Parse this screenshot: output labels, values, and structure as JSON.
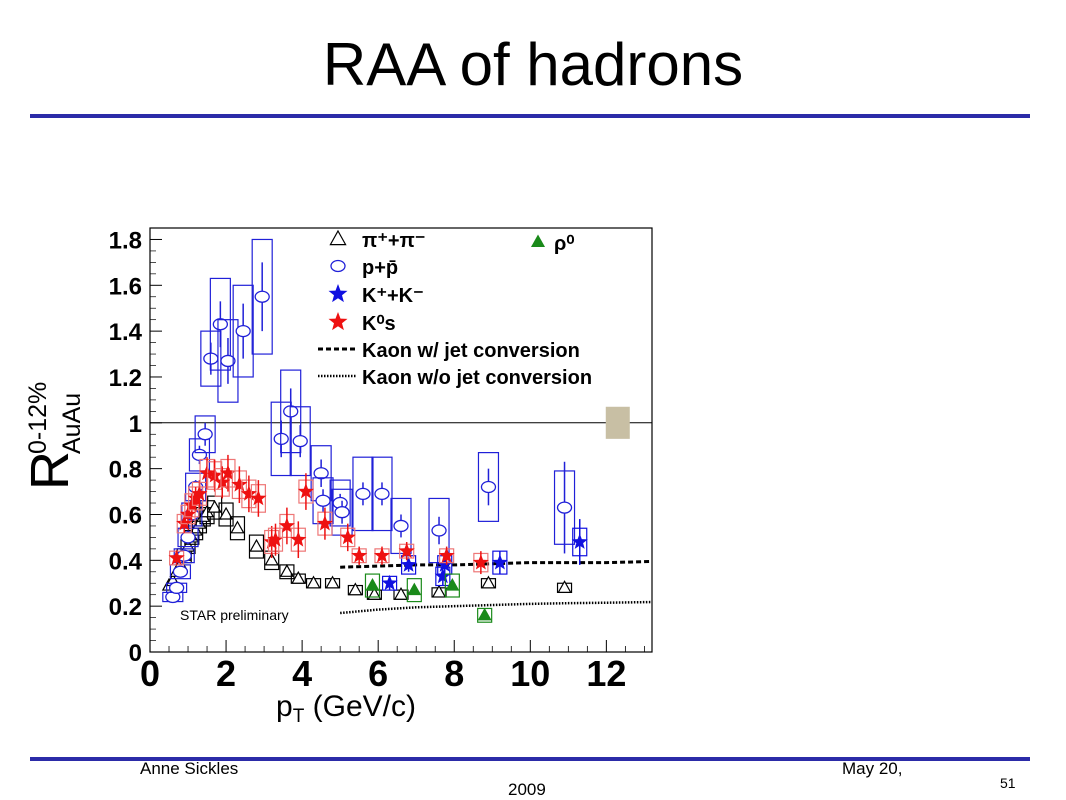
{
  "slide": {
    "title": "RAA of hadrons",
    "footer_author": "Anne Sickles",
    "footer_date_line1": "May 20,",
    "footer_date_line2": "2009",
    "page_number": "51"
  },
  "colors": {
    "rule": "#2b2ba8",
    "pion": "#000000",
    "proton": "#2020d8",
    "kaon_charged": "#1010e0",
    "k0s": "#ee1111",
    "rho": "#1a8a1a",
    "norm_box": "#c8bfa4"
  },
  "chart_data": {
    "type": "scatter",
    "xlim": [
      0,
      13.2
    ],
    "ylim": [
      0,
      1.85
    ],
    "x_ticks": [
      0,
      2,
      4,
      6,
      8,
      10,
      12
    ],
    "y_ticks": [
      0,
      0.2,
      0.4,
      0.6,
      0.8,
      1,
      1.2,
      1.4,
      1.6,
      1.8
    ],
    "x_tick_labels": [
      "0",
      "2",
      "4",
      "6",
      "8",
      "10",
      "12"
    ],
    "y_tick_labels": [
      "0",
      "0.2",
      "0.4",
      "0.6",
      "0.8",
      "1",
      "1.2",
      "1.4",
      "1.6",
      "1.8"
    ],
    "xlabel_main": "p",
    "xlabel_sub": "T",
    "xlabel_rest": " (GeV/c)",
    "ylabel_main": "R",
    "ylabel_sup": "0-12%",
    "ylabel_sub": "AuAu",
    "annotation": "STAR preliminary",
    "reference_line_y": 1,
    "norm_uncertainty": {
      "x": 12.3,
      "y_low": 0.93,
      "y_high": 1.07
    },
    "legend": [
      {
        "label": "π⁺+π⁻",
        "marker": "triangle-open"
      },
      {
        "label": "p+p̄",
        "marker": "circle-open"
      },
      {
        "label": "K⁺+K⁻",
        "marker": "star"
      },
      {
        "label": "K⁰s",
        "marker": "star"
      },
      {
        "label": "Kaon w/ jet conversion",
        "marker": "dashed"
      },
      {
        "label": "Kaon w/o jet conversion",
        "marker": "dotted"
      },
      {
        "label": "ρ⁰",
        "marker": "triangle-filled"
      }
    ],
    "series": [
      {
        "name": "π⁺+π⁻",
        "marker": "triangle-open",
        "points": [
          {
            "x": 0.5,
            "y": 0.29,
            "e": 0.0,
            "s": 0.0
          },
          {
            "x": 0.6,
            "y": 0.31,
            "e": 0.0,
            "s": 0.0
          },
          {
            "x": 0.7,
            "y": 0.35,
            "e": 0.0,
            "s": 0.0
          },
          {
            "x": 0.8,
            "y": 0.38,
            "e": 0.0,
            "s": 0.0
          },
          {
            "x": 0.9,
            "y": 0.42,
            "e": 0.0,
            "s": 0.03
          },
          {
            "x": 1.0,
            "y": 0.46,
            "e": 0.0,
            "s": 0.03
          },
          {
            "x": 1.1,
            "y": 0.5,
            "e": 0.0,
            "s": 0.03
          },
          {
            "x": 1.2,
            "y": 0.53,
            "e": 0.0,
            "s": 0.04
          },
          {
            "x": 1.3,
            "y": 0.56,
            "e": 0.0,
            "s": 0.04
          },
          {
            "x": 1.4,
            "y": 0.59,
            "e": 0.0,
            "s": 0.04
          },
          {
            "x": 1.5,
            "y": 0.61,
            "e": 0.0,
            "s": 0.05
          },
          {
            "x": 1.7,
            "y": 0.63,
            "e": 0.0,
            "s": 0.05
          },
          {
            "x": 2.0,
            "y": 0.6,
            "e": 0.0,
            "s": 0.05
          },
          {
            "x": 2.3,
            "y": 0.54,
            "e": 0.0,
            "s": 0.05
          },
          {
            "x": 2.8,
            "y": 0.46,
            "e": 0.0,
            "s": 0.05
          },
          {
            "x": 3.2,
            "y": 0.4,
            "e": 0.0,
            "s": 0.04
          },
          {
            "x": 3.6,
            "y": 0.35,
            "e": 0.0,
            "s": 0.03
          },
          {
            "x": 3.9,
            "y": 0.32,
            "e": 0.0,
            "s": 0.02
          },
          {
            "x": 4.3,
            "y": 0.3,
            "e": 0.0,
            "s": 0.02
          },
          {
            "x": 4.8,
            "y": 0.3,
            "e": 0.0,
            "s": 0.02
          },
          {
            "x": 5.4,
            "y": 0.27,
            "e": 0.0,
            "s": 0.02
          },
          {
            "x": 5.9,
            "y": 0.25,
            "e": 0.0,
            "s": 0.02
          },
          {
            "x": 6.6,
            "y": 0.25,
            "e": 0.0,
            "s": 0.02
          },
          {
            "x": 7.6,
            "y": 0.26,
            "e": 0.0,
            "s": 0.02
          },
          {
            "x": 8.9,
            "y": 0.3,
            "e": 0.0,
            "s": 0.02
          },
          {
            "x": 10.9,
            "y": 0.28,
            "e": 0.0,
            "s": 0.02
          }
        ]
      },
      {
        "name": "p+p̄",
        "marker": "circle-open",
        "points": [
          {
            "x": 0.6,
            "y": 0.24,
            "e": 0.02,
            "s": 0.02
          },
          {
            "x": 0.7,
            "y": 0.28,
            "e": 0.02,
            "s": 0.02
          },
          {
            "x": 0.8,
            "y": 0.35,
            "e": 0.02,
            "s": 0.03
          },
          {
            "x": 0.9,
            "y": 0.42,
            "e": 0.02,
            "s": 0.03
          },
          {
            "x": 1.0,
            "y": 0.5,
            "e": 0.03,
            "s": 0.04
          },
          {
            "x": 1.1,
            "y": 0.6,
            "e": 0.03,
            "s": 0.05
          },
          {
            "x": 1.2,
            "y": 0.72,
            "e": 0.03,
            "s": 0.06
          },
          {
            "x": 1.3,
            "y": 0.86,
            "e": 0.04,
            "s": 0.07
          },
          {
            "x": 1.45,
            "y": 0.95,
            "e": 0.05,
            "s": 0.08
          },
          {
            "x": 1.6,
            "y": 1.28,
            "e": 0.07,
            "s": 0.12
          },
          {
            "x": 1.85,
            "y": 1.43,
            "e": 0.1,
            "s": 0.2
          },
          {
            "x": 2.05,
            "y": 1.27,
            "e": 0.1,
            "s": 0.18
          },
          {
            "x": 2.45,
            "y": 1.4,
            "e": 0.12,
            "s": 0.2
          },
          {
            "x": 2.95,
            "y": 1.55,
            "e": 0.15,
            "s": 0.25
          },
          {
            "x": 3.45,
            "y": 0.93,
            "e": 0.08,
            "s": 0.16
          },
          {
            "x": 3.7,
            "y": 1.05,
            "e": 0.1,
            "s": 0.18
          },
          {
            "x": 3.95,
            "y": 0.92,
            "e": 0.07,
            "s": 0.15
          },
          {
            "x": 4.5,
            "y": 0.78,
            "e": 0.06,
            "s": 0.12
          },
          {
            "x": 4.55,
            "y": 0.66,
            "e": 0.05,
            "s": 0.1
          },
          {
            "x": 5.0,
            "y": 0.65,
            "e": 0.04,
            "s": 0.1
          },
          {
            "x": 5.05,
            "y": 0.61,
            "e": 0.05,
            "s": 0.1
          },
          {
            "x": 5.6,
            "y": 0.69,
            "e": 0.05,
            "s": 0.16
          },
          {
            "x": 6.1,
            "y": 0.69,
            "e": 0.05,
            "s": 0.16
          },
          {
            "x": 6.6,
            "y": 0.55,
            "e": 0.05,
            "s": 0.12
          },
          {
            "x": 7.6,
            "y": 0.53,
            "e": 0.06,
            "s": 0.14
          },
          {
            "x": 8.9,
            "y": 0.72,
            "e": 0.08,
            "s": 0.15
          },
          {
            "x": 10.9,
            "y": 0.63,
            "e": 0.2,
            "s": 0.16
          }
        ]
      },
      {
        "name": "K⁺+K⁻",
        "marker": "star",
        "points": [
          {
            "x": 6.3,
            "y": 0.3,
            "e": 0.03,
            "s": 0.03
          },
          {
            "x": 6.8,
            "y": 0.38,
            "e": 0.03,
            "s": 0.04
          },
          {
            "x": 7.7,
            "y": 0.33,
            "e": 0.04,
            "s": 0.04
          },
          {
            "x": 7.75,
            "y": 0.38,
            "e": 0.04,
            "s": 0.04
          },
          {
            "x": 9.2,
            "y": 0.39,
            "e": 0.05,
            "s": 0.05
          },
          {
            "x": 11.3,
            "y": 0.48,
            "e": 0.1,
            "s": 0.06
          }
        ]
      },
      {
        "name": "K⁰s",
        "marker": "star",
        "points": [
          {
            "x": 0.7,
            "y": 0.41,
            "e": 0.03,
            "s": 0.03
          },
          {
            "x": 0.9,
            "y": 0.56,
            "e": 0.04,
            "s": 0.04
          },
          {
            "x": 1.0,
            "y": 0.6,
            "e": 0.04,
            "s": 0.04
          },
          {
            "x": 1.1,
            "y": 0.64,
            "e": 0.05,
            "s": 0.05
          },
          {
            "x": 1.2,
            "y": 0.67,
            "e": 0.05,
            "s": 0.05
          },
          {
            "x": 1.3,
            "y": 0.69,
            "e": 0.06,
            "s": 0.05
          },
          {
            "x": 1.5,
            "y": 0.78,
            "e": 0.07,
            "s": 0.06
          },
          {
            "x": 1.7,
            "y": 0.77,
            "e": 0.07,
            "s": 0.06
          },
          {
            "x": 1.9,
            "y": 0.74,
            "e": 0.07,
            "s": 0.06
          },
          {
            "x": 2.05,
            "y": 0.78,
            "e": 0.08,
            "s": 0.06
          },
          {
            "x": 2.35,
            "y": 0.73,
            "e": 0.08,
            "s": 0.06
          },
          {
            "x": 2.6,
            "y": 0.69,
            "e": 0.08,
            "s": 0.06
          },
          {
            "x": 2.85,
            "y": 0.67,
            "e": 0.08,
            "s": 0.06
          },
          {
            "x": 3.2,
            "y": 0.48,
            "e": 0.07,
            "s": 0.05
          },
          {
            "x": 3.3,
            "y": 0.49,
            "e": 0.07,
            "s": 0.05
          },
          {
            "x": 3.6,
            "y": 0.55,
            "e": 0.08,
            "s": 0.05
          },
          {
            "x": 3.9,
            "y": 0.49,
            "e": 0.08,
            "s": 0.05
          },
          {
            "x": 4.1,
            "y": 0.7,
            "e": 0.08,
            "s": 0.05
          },
          {
            "x": 4.6,
            "y": 0.56,
            "e": 0.07,
            "s": 0.05
          },
          {
            "x": 5.2,
            "y": 0.5,
            "e": 0.06,
            "s": 0.04
          },
          {
            "x": 5.5,
            "y": 0.42,
            "e": 0.04,
            "s": 0.03
          },
          {
            "x": 6.1,
            "y": 0.42,
            "e": 0.04,
            "s": 0.03
          },
          {
            "x": 6.75,
            "y": 0.44,
            "e": 0.04,
            "s": 0.03
          },
          {
            "x": 7.8,
            "y": 0.42,
            "e": 0.04,
            "s": 0.03
          },
          {
            "x": 8.7,
            "y": 0.39,
            "e": 0.05,
            "s": 0.04
          }
        ]
      },
      {
        "name": "ρ⁰",
        "marker": "triangle-filled",
        "points": [
          {
            "x": 5.85,
            "y": 0.29,
            "e": 0.02,
            "s": 0.05
          },
          {
            "x": 6.95,
            "y": 0.27,
            "e": 0.02,
            "s": 0.05
          },
          {
            "x": 7.95,
            "y": 0.29,
            "e": 0.02,
            "s": 0.05
          },
          {
            "x": 8.8,
            "y": 0.16,
            "e": 0.02,
            "s": 0.03
          }
        ]
      }
    ],
    "curves": [
      {
        "name": "Kaon w/ jet conversion",
        "style": "dashed",
        "x": [
          5.0,
          6.0,
          7.0,
          8.0,
          9.0,
          10.0,
          11.0,
          12.0,
          13.2
        ],
        "y": [
          0.37,
          0.375,
          0.38,
          0.38,
          0.385,
          0.39,
          0.39,
          0.39,
          0.395
        ]
      },
      {
        "name": "Kaon w/o jet conversion",
        "style": "dotted",
        "x": [
          5.0,
          6.0,
          7.0,
          8.0,
          9.0,
          10.0,
          11.0,
          12.0,
          13.2
        ],
        "y": [
          0.17,
          0.185,
          0.195,
          0.2,
          0.205,
          0.21,
          0.213,
          0.215,
          0.218
        ]
      }
    ]
  }
}
